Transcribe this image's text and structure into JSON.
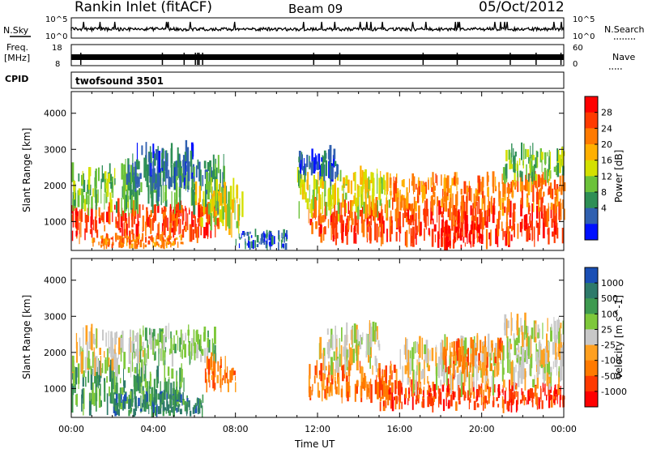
{
  "header": {
    "station": "Rankin Inlet (fitACF)",
    "beam": "Beam 09",
    "date": "05/Oct/2012"
  },
  "strips": {
    "nsky_label": "N.Sky",
    "nsky_ticks": [
      "10^5",
      "10^0"
    ],
    "nsearch_label": "N.Search",
    "freq_label": "Freq.",
    "freq_unit": "[MHz]",
    "freq_ticks": [
      "18",
      "8"
    ],
    "nave_label": "Nave",
    "nave_ticks": [
      "60",
      "0"
    ],
    "cpid_label": "CPID",
    "cpid_value": "twofsound 3501"
  },
  "panels": {
    "ylabel": "Slant Range [km]",
    "xlabel": "Time UT",
    "x_ticks": [
      "00:00",
      "04:00",
      "08:00",
      "12:00",
      "16:00",
      "20:00",
      "00:00"
    ],
    "y_ticks": [
      "1000",
      "2000",
      "3000",
      "4000"
    ]
  },
  "power_scale": {
    "label": "Power [dB]",
    "ticks": [
      "28",
      "24",
      "20",
      "16",
      "12",
      "8",
      "4"
    ],
    "colors": [
      "#ff0000",
      "#ff3a00",
      "#ff7a00",
      "#ffb000",
      "#d4e000",
      "#6cc23a",
      "#2e8f55",
      "#3060b0",
      "#0010ff"
    ]
  },
  "velocity_scale": {
    "label": "Velocity [m s^-1]",
    "ticks": [
      "1000",
      "500",
      "100",
      "25",
      "-25",
      "-100",
      "-500",
      "-1000"
    ],
    "colors": [
      "#1a4fb5",
      "#2e7a6a",
      "#3e9a50",
      "#7ec83a",
      "#c8c8c8",
      "#ffa020",
      "#ff7a00",
      "#ff3a00",
      "#ff0000"
    ]
  },
  "chart_data": [
    {
      "type": "heatmap",
      "title": "Power",
      "xlabel": "Time UT",
      "ylabel": "Slant Range [km]",
      "xlim": [
        0,
        24
      ],
      "ylim": [
        200,
        4600
      ],
      "colorbar": "Power [dB]",
      "regions": [
        {
          "t0": 0.0,
          "t1": 7.2,
          "r0": 600,
          "r1": 1400,
          "level": 1
        },
        {
          "t0": 0.0,
          "t1": 3.0,
          "r0": 1400,
          "r1": 2400,
          "level": 5
        },
        {
          "t0": 1.0,
          "t1": 5.5,
          "r0": 300,
          "r1": 600,
          "level": 2
        },
        {
          "t0": 2.5,
          "t1": 7.5,
          "r0": 1500,
          "r1": 2600,
          "level": 6
        },
        {
          "t0": 3.0,
          "t1": 6.0,
          "r0": 2000,
          "r1": 3000,
          "level": 7
        },
        {
          "t0": 6.0,
          "t1": 8.3,
          "r0": 900,
          "r1": 2000,
          "level": 4
        },
        {
          "t0": 8.0,
          "t1": 10.5,
          "r0": 300,
          "r1": 700,
          "level": 7
        },
        {
          "t0": 11.5,
          "t1": 24.0,
          "r0": 500,
          "r1": 1400,
          "level": 1
        },
        {
          "t0": 11.0,
          "t1": 15.5,
          "r0": 1300,
          "r1": 2300,
          "level": 4
        },
        {
          "t0": 11.0,
          "t1": 13.0,
          "r0": 2200,
          "r1": 3000,
          "level": 7
        },
        {
          "t0": 15.5,
          "t1": 24.0,
          "r0": 1400,
          "r1": 2200,
          "level": 2
        },
        {
          "t0": 18.0,
          "t1": 20.0,
          "r0": 300,
          "r1": 900,
          "level": 0
        },
        {
          "t0": 21.0,
          "t1": 24.0,
          "r0": 2200,
          "r1": 3000,
          "level": 5
        }
      ]
    },
    {
      "type": "heatmap",
      "title": "Velocity",
      "xlabel": "Time UT",
      "ylabel": "Slant Range [km]",
      "xlim": [
        0,
        24
      ],
      "ylim": [
        200,
        4600
      ],
      "colorbar": "Velocity [m s^-1]",
      "regions": [
        {
          "t0": 0.0,
          "t1": 5.5,
          "r0": 500,
          "r1": 1500,
          "level": 2
        },
        {
          "t0": 0.0,
          "t1": 3.5,
          "r0": 1500,
          "r1": 2500,
          "level": 4
        },
        {
          "t0": 2.0,
          "t1": 6.5,
          "r0": 300,
          "r1": 800,
          "level": 1
        },
        {
          "t0": 3.0,
          "t1": 7.0,
          "r0": 1800,
          "r1": 2600,
          "level": 3
        },
        {
          "t0": 6.5,
          "t1": 8.0,
          "r0": 1000,
          "r1": 1800,
          "level": 6
        },
        {
          "t0": 11.5,
          "t1": 16.0,
          "r0": 800,
          "r1": 1600,
          "level": 6
        },
        {
          "t0": 15.0,
          "t1": 24.0,
          "r0": 500,
          "r1": 1100,
          "level": 7
        },
        {
          "t0": 16.0,
          "t1": 24.0,
          "r0": 1100,
          "r1": 2200,
          "level": 4
        },
        {
          "t0": 12.0,
          "t1": 15.0,
          "r0": 1600,
          "r1": 2600,
          "level": 4
        },
        {
          "t0": 18.0,
          "t1": 21.0,
          "r0": 1500,
          "r1": 2300,
          "level": 6
        },
        {
          "t0": 21.0,
          "t1": 24.0,
          "r0": 1800,
          "r1": 2800,
          "level": 4
        }
      ]
    }
  ]
}
